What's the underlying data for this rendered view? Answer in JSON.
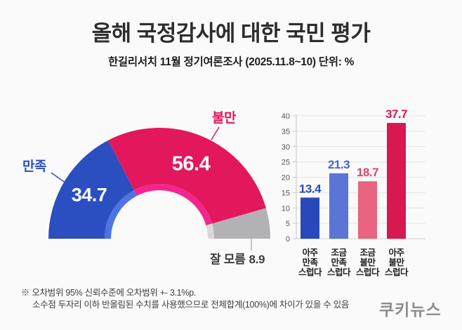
{
  "header": {
    "title": "올해 국정감사에 대한 국민 평가",
    "subtitle": "한길리서치 11월 정기여론조사 (2025.11.8~10) 단위: %"
  },
  "chart_data": [
    {
      "type": "pie",
      "variant": "semicircle-donut",
      "title": "올해 국정감사에 대한 국민 평가",
      "unit": "%",
      "segments": [
        {
          "label": "만족",
          "value": 34.7,
          "color": "#2b4fc1",
          "inner_color": "#4f73e0",
          "label_color": "#2b4fc1"
        },
        {
          "label": "불만",
          "value": 56.4,
          "color": "#e2175c",
          "inner_color": "#f4258d",
          "label_color": "#e2175c"
        },
        {
          "label": "잘 모름",
          "value": 8.9,
          "color": "#b2b2b6",
          "inner_color": "#d9d9db",
          "label_color": "#3d3d3d"
        }
      ]
    },
    {
      "type": "bar",
      "categories": [
        [
          "아주",
          "만족",
          "스럽다"
        ],
        [
          "조금",
          "만족",
          "스럽다"
        ],
        [
          "조금",
          "불만",
          "스럽다"
        ],
        [
          "아주",
          "불만",
          "스럽다"
        ]
      ],
      "values": [
        13.4,
        21.3,
        18.7,
        37.7
      ],
      "bar_colors": [
        "#2949ba",
        "#5a75d6",
        "#e8647f",
        "#d7194f"
      ],
      "value_label_colors": [
        "#2949ba",
        "#4466cf",
        "#e04168",
        "#d7194f"
      ],
      "ylabel": "",
      "xlabel": "",
      "ylim": [
        0,
        40
      ],
      "ytick_step": 5,
      "yticks": [
        0,
        5,
        10,
        15,
        20,
        25,
        30,
        35,
        40
      ],
      "grid": true,
      "legend": "none"
    }
  ],
  "footnote": {
    "line1": "※ 오차범위 95% 신뢰수준에 오차범위 +- 3.1%p.",
    "line2": "소수점 두자리 이하 반올림된 수치를 사용했으므로 전체합계(100%)에 차이가 있을 수 있음"
  },
  "logo": "쿠키뉴스"
}
